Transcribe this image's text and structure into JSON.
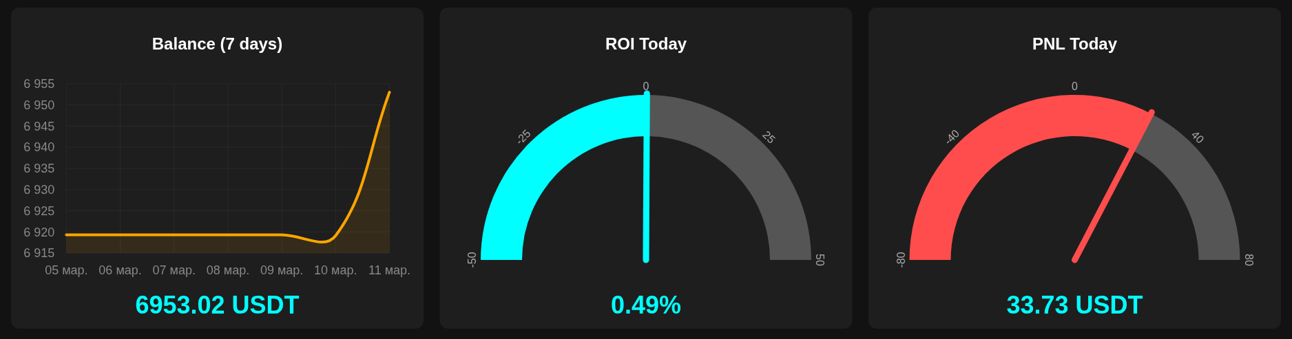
{
  "chart_data": [
    {
      "type": "area",
      "title": "Balance (7 days)",
      "categories": [
        "05 мар.",
        "06 мар.",
        "07 мар.",
        "08 мар.",
        "09 мар.",
        "10 мар.",
        "11 мар."
      ],
      "series": [
        {
          "color": "#ffa500",
          "values": [
            6919.3,
            6919.3,
            6919.3,
            6919.3,
            6919.3,
            6919.1,
            6953
          ]
        }
      ],
      "ylim": [
        6915,
        6955
      ],
      "yticks": [
        {
          "value": 6915,
          "label": "6 915"
        },
        {
          "value": 6920,
          "label": "6 920"
        },
        {
          "value": 6925,
          "label": "6 925"
        },
        {
          "value": 6930,
          "label": "6 930"
        },
        {
          "value": 6935,
          "label": "6 935"
        },
        {
          "value": 6940,
          "label": "6 940"
        },
        {
          "value": 6945,
          "label": "6 945"
        },
        {
          "value": 6950,
          "label": "6 950"
        },
        {
          "value": 6955,
          "label": "6 955"
        }
      ],
      "grid": true,
      "annotations": [
        "6953.02 USDT"
      ]
    },
    {
      "type": "donut",
      "title": "ROI Today",
      "categories": [
        null,
        null
      ],
      "values": [
        50.49,
        49.51
      ],
      "colors": [
        "#00ffff",
        "#555555"
      ],
      "needle": null,
      "annotations": [
        "-50",
        "-25",
        "0",
        "25",
        "50",
        "0.49%"
      ]
    },
    {
      "type": "donut",
      "title": "PNL Today",
      "categories": [
        null,
        null
      ],
      "values": [
        65.6,
        34.4
      ],
      "colors": [
        "#ff4d4d",
        "#555555"
      ],
      "needle": null,
      "annotations": [
        "-80",
        "-40",
        "0",
        "40",
        "80",
        "33.73 USDT"
      ]
    }
  ]
}
